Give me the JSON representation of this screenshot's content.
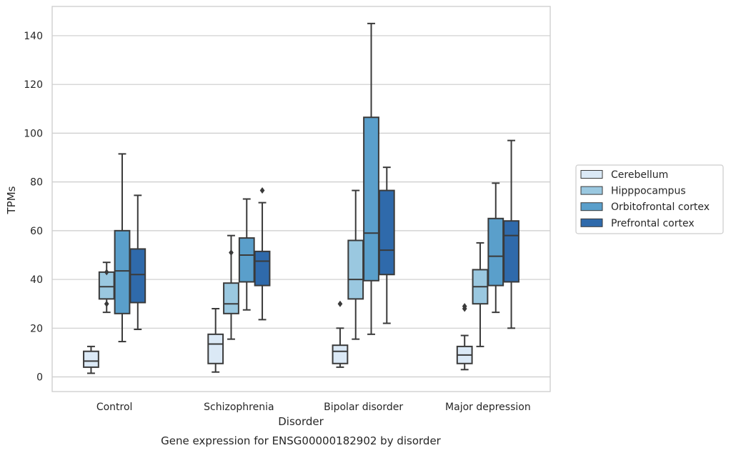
{
  "chart_data": {
    "type": "box",
    "title": "",
    "caption": "Gene expression for ENSG00000182902 by disorder",
    "xlabel": "Disorder",
    "ylabel": "TPMs",
    "ylim": [
      -6,
      152
    ],
    "yticks": [
      0,
      20,
      40,
      60,
      80,
      100,
      120,
      140
    ],
    "grid": true,
    "legend_position": "right",
    "categories": [
      "Control",
      "Schizophrenia",
      "Bipolar disorder",
      "Major depression"
    ],
    "series": [
      {
        "name": "Cerebellum",
        "color": "#dbe9f6",
        "boxes": [
          {
            "whislo": 1.5,
            "q1": 4,
            "med": 6.5,
            "q3": 10.5,
            "whishi": 12.5,
            "fliers": []
          },
          {
            "whislo": 2,
            "q1": 5.5,
            "med": 13.5,
            "q3": 17.5,
            "whishi": 28,
            "fliers": []
          },
          {
            "whislo": 4,
            "q1": 5.5,
            "med": 10.5,
            "q3": 13,
            "whishi": 20,
            "fliers": [
              30
            ]
          },
          {
            "whislo": 3,
            "q1": 5.5,
            "med": 9,
            "q3": 12.5,
            "whishi": 17,
            "fliers": [
              28,
              29
            ]
          }
        ]
      },
      {
        "name": "Hipppocampus",
        "color": "#9ac8e0",
        "boxes": [
          {
            "whislo": 26.5,
            "q1": 32,
            "med": 37,
            "q3": 43,
            "whishi": 47,
            "fliers": [
              30,
              43
            ]
          },
          {
            "whislo": 15.5,
            "q1": 26,
            "med": 30,
            "q3": 38.5,
            "whishi": 58,
            "fliers": [
              51
            ]
          },
          {
            "whislo": 15.5,
            "q1": 32,
            "med": 40,
            "q3": 56,
            "whishi": 76.5,
            "fliers": []
          },
          {
            "whislo": 12.5,
            "q1": 30,
            "med": 37,
            "q3": 44,
            "whishi": 55,
            "fliers": []
          }
        ]
      },
      {
        "name": "Orbitofrontal cortex",
        "color": "#5a9fcb",
        "boxes": [
          {
            "whislo": 14.5,
            "q1": 26,
            "med": 43.5,
            "q3": 60,
            "whishi": 91.5,
            "fliers": []
          },
          {
            "whislo": 27.5,
            "q1": 39,
            "med": 50,
            "q3": 57,
            "whishi": 73,
            "fliers": []
          },
          {
            "whislo": 17.5,
            "q1": 39.5,
            "med": 59,
            "q3": 106.5,
            "whishi": 145,
            "fliers": []
          },
          {
            "whislo": 26.5,
            "q1": 37.5,
            "med": 49.5,
            "q3": 65,
            "whishi": 79.5,
            "fliers": []
          }
        ]
      },
      {
        "name": "Prefrontal cortex",
        "color": "#2f6aab",
        "boxes": [
          {
            "whislo": 19.5,
            "q1": 30.5,
            "med": 42,
            "q3": 52.5,
            "whishi": 74.5,
            "fliers": []
          },
          {
            "whislo": 23.5,
            "q1": 37.5,
            "med": 47.5,
            "q3": 51.5,
            "whishi": 71.5,
            "fliers": [
              76.5
            ]
          },
          {
            "whislo": 22,
            "q1": 42,
            "med": 52,
            "q3": 76.5,
            "whishi": 86,
            "fliers": []
          },
          {
            "whislo": 20,
            "q1": 39,
            "med": 58,
            "q3": 64,
            "whishi": 97,
            "fliers": []
          }
        ]
      }
    ]
  }
}
